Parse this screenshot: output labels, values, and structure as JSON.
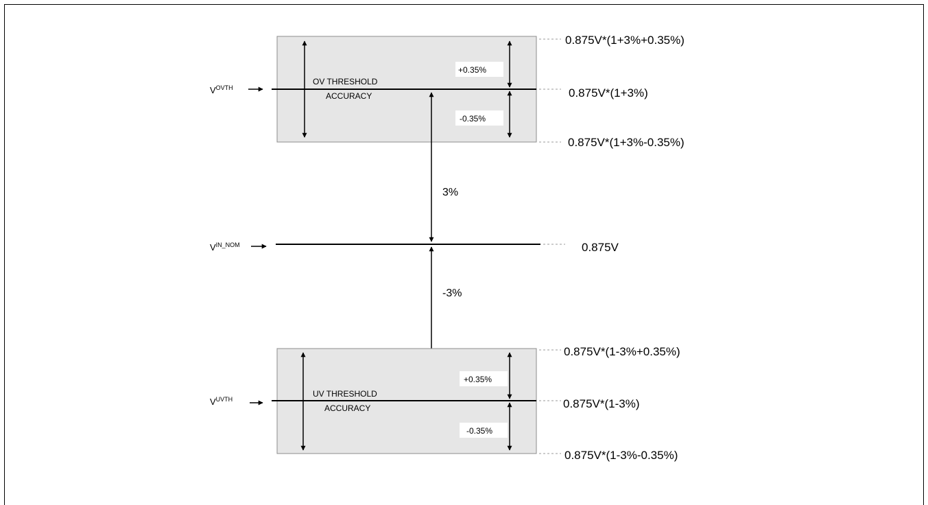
{
  "ov_region": {
    "label_line1": "OV THRESHOLD",
    "label_line2": "ACCURACY",
    "plus_tol": "+0.35%",
    "minus_tol": "-0.35%",
    "signal_main": "V",
    "signal_sub": "OVTH",
    "level_upper": "0.875V*(1+3%+0.35%)",
    "level_mid": "0.875V*(1+3%)",
    "level_lower": "0.875V*(1+3%-0.35%)"
  },
  "nominal": {
    "signal_main": "V",
    "signal_sub": "IN_NOM",
    "level": "0.875V",
    "offset_up": "3%",
    "offset_down": "-3%"
  },
  "uv_region": {
    "label_line1": "UV THRESHOLD",
    "label_line2": "ACCURACY",
    "plus_tol": "+0.35%",
    "minus_tol": "-0.35%",
    "signal_main": "V",
    "signal_sub": "UVTH",
    "level_upper": "0.875V*(1-3%+0.35%)",
    "level_mid": "0.875V*(1-3%)",
    "level_lower": "0.875V*(1-3%-0.35%)"
  },
  "colors": {
    "band_fill": "#e6e6e6",
    "band_stroke": "#8c8c8c",
    "line": "#000000",
    "dash": "#999999"
  }
}
